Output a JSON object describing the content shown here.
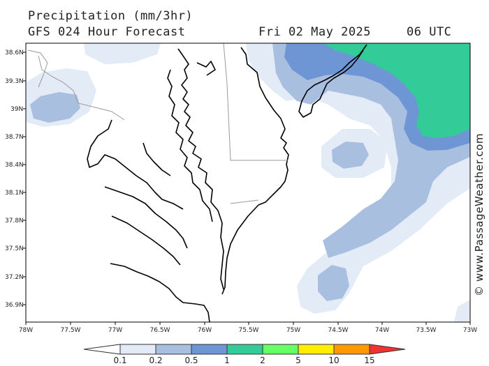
{
  "header": {
    "title": "Precipitation (mm/3hr)",
    "subtitle": "GFS 024 Hour Forecast",
    "date": "Fri 02 May 2025",
    "time": "06 UTC"
  },
  "credit": "© www.PassageWeather.com",
  "axes": {
    "lat_labels": [
      "38.6N",
      "39.3N",
      "39N",
      "38.7N",
      "38.4N",
      "38.1N",
      "37.8N",
      "37.5N",
      "37.2N",
      "36.9N"
    ],
    "lon_labels": [
      "78W",
      "77.5W",
      "77W",
      "76.5W",
      "76W",
      "75.5W",
      "75W",
      "74.5W",
      "74W",
      "73.5W",
      "73W"
    ]
  },
  "colorbar": {
    "labels": [
      "0.1",
      "0.2",
      "0.5",
      "1",
      "2",
      "5",
      "10",
      "15"
    ],
    "colors": [
      "#e3ebf7",
      "#a9bfe0",
      "#6e95d4",
      "#33cc99",
      "#66ff66",
      "#ffee00",
      "#ff9900",
      "#ee3333"
    ]
  }
}
